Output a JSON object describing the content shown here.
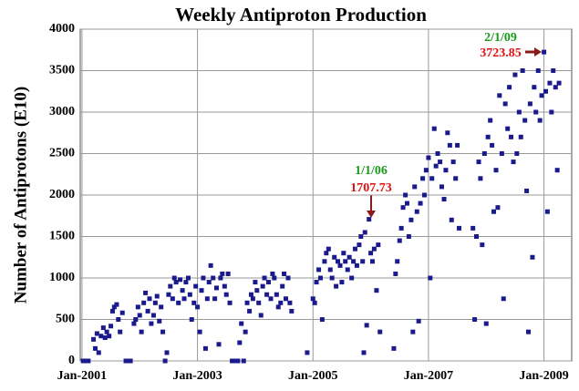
{
  "chart_data": {
    "type": "scatter",
    "title": "Weekly Antiproton Production",
    "ylabel": "Number of Antiprotons (E10)",
    "color": "#1a1a8c",
    "grid": true,
    "xlim": [
      2000.97,
      2009.48
    ],
    "ylim": [
      0,
      4000
    ],
    "xticks": [
      {
        "value": 2001,
        "label": "Jan-2001"
      },
      {
        "value": 2003,
        "label": "Jan-2003"
      },
      {
        "value": 2005,
        "label": "Jan-2005"
      },
      {
        "value": 2007,
        "label": "Jan-2007"
      },
      {
        "value": 2009,
        "label": "Jan-2009"
      }
    ],
    "yticks": [
      0,
      500,
      1000,
      1500,
      2000,
      2500,
      3000,
      3500,
      4000
    ],
    "annotations": [
      {
        "date": "1/1/06",
        "value": "1707.73"
      },
      {
        "date": "2/1/09",
        "value": "3723.85"
      }
    ],
    "annotation_colors": {
      "date": "#1a9a1a",
      "value": "#e01010"
    },
    "x": [
      2001.02,
      2001.05,
      2001.08,
      2001.11,
      2001.2,
      2001.23,
      2001.26,
      2001.29,
      2001.33,
      2001.37,
      2001.4,
      2001.43,
      2001.47,
      2001.5,
      2001.53,
      2001.56,
      2001.6,
      2001.63,
      2001.66,
      2001.7,
      2001.76,
      2001.8,
      2001.84,
      2001.9,
      2001.93,
      2001.97,
      2002.0,
      2002.03,
      2002.07,
      2002.1,
      2002.14,
      2002.17,
      2002.2,
      2002.24,
      2002.27,
      2002.3,
      2002.34,
      2002.37,
      2002.4,
      2002.44,
      2002.47,
      2002.5,
      2002.53,
      2002.57,
      2002.6,
      2002.63,
      2002.67,
      2002.7,
      2002.74,
      2002.77,
      2002.8,
      2002.84,
      2002.87,
      2002.9,
      2002.94,
      2002.97,
      2003.0,
      2003.04,
      2003.07,
      2003.1,
      2003.14,
      2003.17,
      2003.2,
      2003.23,
      2003.27,
      2003.3,
      2003.33,
      2003.37,
      2003.4,
      2003.43,
      2003.47,
      2003.5,
      2003.53,
      2003.56,
      2003.6,
      2003.63,
      2003.7,
      2003.73,
      2003.76,
      2003.8,
      2003.83,
      2003.86,
      2003.9,
      2003.93,
      2003.96,
      2004.0,
      2004.03,
      2004.06,
      2004.1,
      2004.13,
      2004.16,
      2004.2,
      2004.23,
      2004.27,
      2004.3,
      2004.33,
      2004.37,
      2004.4,
      2004.44,
      2004.47,
      2004.5,
      2004.53,
      2004.57,
      2004.6,
      2004.63,
      2004.9,
      2005.0,
      2005.03,
      2005.06,
      2005.1,
      2005.13,
      2005.16,
      2005.2,
      2005.23,
      2005.27,
      2005.3,
      2005.33,
      2005.37,
      2005.4,
      2005.43,
      2005.47,
      2005.5,
      2005.53,
      2005.56,
      2005.6,
      2005.63,
      2005.67,
      2005.7,
      2005.73,
      2005.76,
      2005.8,
      2005.83,
      2005.86,
      2005.88,
      2005.9,
      2005.93,
      2005.97,
      2006.0,
      2006.03,
      2006.06,
      2006.1,
      2006.13,
      2006.16,
      2006.4,
      2006.43,
      2006.46,
      2006.5,
      2006.53,
      2006.56,
      2006.6,
      2006.63,
      2006.66,
      2006.7,
      2006.73,
      2006.76,
      2006.8,
      2006.83,
      2006.86,
      2006.9,
      2006.93,
      2006.96,
      2007.0,
      2007.03,
      2007.06,
      2007.1,
      2007.13,
      2007.16,
      2007.2,
      2007.23,
      2007.27,
      2007.3,
      2007.33,
      2007.37,
      2007.4,
      2007.43,
      2007.47,
      2007.5,
      2007.53,
      2007.77,
      2007.8,
      2007.83,
      2007.87,
      2007.9,
      2007.93,
      2007.97,
      2008.0,
      2008.03,
      2008.07,
      2008.1,
      2008.13,
      2008.17,
      2008.2,
      2008.23,
      2008.27,
      2008.3,
      2008.33,
      2008.37,
      2008.4,
      2008.43,
      2008.47,
      2008.5,
      2008.53,
      2008.57,
      2008.6,
      2008.63,
      2008.67,
      2008.7,
      2008.73,
      2008.76,
      2008.8,
      2008.83,
      2008.86,
      2008.9,
      2008.93,
      2008.96,
      2009.0,
      2009.03,
      2009.06,
      2009.1,
      2009.13,
      2009.16,
      2009.2,
      2009.23,
      2009.26
    ],
    "values": [
      0,
      0,
      0,
      0,
      260,
      150,
      330,
      100,
      300,
      400,
      280,
      350,
      300,
      420,
      600,
      650,
      680,
      500,
      350,
      580,
      0,
      0,
      0,
      450,
      500,
      650,
      550,
      350,
      700,
      820,
      600,
      750,
      450,
      550,
      700,
      780,
      480,
      650,
      350,
      0,
      100,
      800,
      900,
      750,
      1000,
      950,
      700,
      980,
      850,
      750,
      950,
      1000,
      800,
      500,
      700,
      900,
      650,
      350,
      850,
      1000,
      150,
      750,
      950,
      1150,
      1000,
      750,
      880,
      200,
      1000,
      1050,
      900,
      800,
      1050,
      700,
      0,
      0,
      0,
      220,
      450,
      0,
      350,
      700,
      600,
      800,
      750,
      950,
      850,
      700,
      550,
      900,
      1000,
      800,
      950,
      750,
      1050,
      1000,
      800,
      650,
      700,
      900,
      1050,
      750,
      1000,
      700,
      600,
      100,
      750,
      700,
      950,
      1100,
      1000,
      500,
      1200,
      1300,
      1350,
      1100,
      1000,
      1250,
      900,
      1200,
      1150,
      950,
      1300,
      1200,
      1100,
      1250,
      1000,
      1200,
      1350,
      1150,
      1400,
      1500,
      1200,
      100,
      1550,
      430,
      1707.73,
      1300,
      1200,
      1350,
      850,
      1400,
      350,
      150,
      1050,
      1200,
      1450,
      1600,
      1850,
      2000,
      1900,
      1500,
      1700,
      350,
      2100,
      1800,
      480,
      1900,
      2200,
      2000,
      2300,
      2450,
      1000,
      2200,
      2800,
      2350,
      2500,
      2400,
      2100,
      1950,
      2300,
      2750,
      2600,
      1700,
      2400,
      2200,
      2600,
      1600,
      1600,
      500,
      1500,
      2400,
      2200,
      1400,
      2500,
      450,
      2700,
      2900,
      2600,
      1800,
      2300,
      1850,
      3200,
      2500,
      750,
      3100,
      2800,
      3300,
      2700,
      2400,
      3450,
      2500,
      3000,
      2700,
      3500,
      2900,
      2050,
      350,
      3100,
      1250,
      3300,
      3000,
      3500,
      2900,
      3200,
      3723.85,
      3250,
      1800,
      3350,
      3000,
      3500,
      3300,
      2300,
      3350
    ]
  }
}
